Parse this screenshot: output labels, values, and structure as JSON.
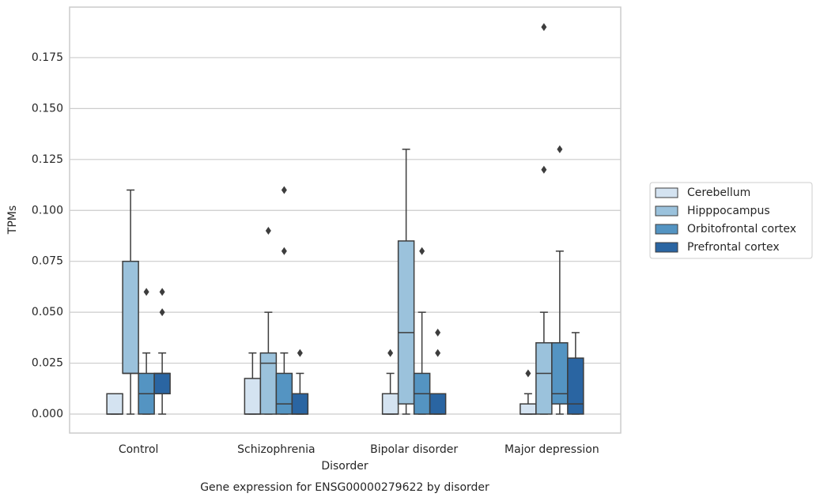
{
  "chart_data": {
    "type": "box",
    "title": "Gene expression for ENSG00000279622 by disorder",
    "x_label": "Disorder",
    "y_label": "TPMs",
    "categories": [
      "Control",
      "Schizophrenia",
      "Bipolar disorder",
      "Major depression"
    ],
    "ylim": [
      -0.0093,
      0.1998
    ],
    "yticks": [
      {
        "value": 0,
        "label": "0.000"
      },
      {
        "value": 0.025,
        "label": "0.025"
      },
      {
        "value": 0.05,
        "label": "0.050"
      },
      {
        "value": 0.075,
        "label": "0.075"
      },
      {
        "value": 0.1,
        "label": "0.100"
      },
      {
        "value": 0.125,
        "label": "0.125"
      },
      {
        "value": 0.15,
        "label": "0.150"
      },
      {
        "value": 0.175,
        "label": "0.175"
      }
    ],
    "grid": true,
    "legend": "right",
    "series": [
      {
        "name": "Cerebellum",
        "color": "#d4e3f1",
        "values": [
          {
            "whislo": 0,
            "q1": 0,
            "med": 0,
            "q3": 0.01,
            "whishi": 0.01,
            "fliers": []
          },
          {
            "whislo": 0,
            "q1": 0,
            "med": 0,
            "q3": 0.0175,
            "whishi": 0.03,
            "fliers": []
          },
          {
            "whislo": 0,
            "q1": 0,
            "med": 0,
            "q3": 0.01,
            "whishi": 0.02,
            "fliers": [
              0.03
            ]
          },
          {
            "whislo": 0,
            "q1": 0,
            "med": 0,
            "q3": 0.005,
            "whishi": 0.01,
            "fliers": [
              0.02
            ]
          }
        ]
      },
      {
        "name": "Hipppocampus",
        "color": "#9bc2dc",
        "values": [
          {
            "whislo": 0,
            "q1": 0.02,
            "med": 0.02,
            "q3": 0.075,
            "whishi": 0.11,
            "fliers": []
          },
          {
            "whislo": 0,
            "q1": 0,
            "med": 0.025,
            "q3": 0.03,
            "whishi": 0.05,
            "fliers": [
              0.09
            ]
          },
          {
            "whislo": 0,
            "q1": 0.005,
            "med": 0.04,
            "q3": 0.085,
            "whishi": 0.13,
            "fliers": []
          },
          {
            "whislo": 0,
            "q1": 0,
            "med": 0.02,
            "q3": 0.035,
            "whishi": 0.05,
            "fliers": [
              0.12,
              0.19
            ]
          }
        ]
      },
      {
        "name": "Orbitofrontal cortex",
        "color": "#5494c2",
        "values": [
          {
            "whislo": 0,
            "q1": 0,
            "med": 0.01,
            "q3": 0.02,
            "whishi": 0.03,
            "fliers": [
              0.06
            ]
          },
          {
            "whislo": 0,
            "q1": 0,
            "med": 0.005,
            "q3": 0.02,
            "whishi": 0.03,
            "fliers": [
              0.08,
              0.11
            ]
          },
          {
            "whislo": 0,
            "q1": 0,
            "med": 0.01,
            "q3": 0.02,
            "whishi": 0.05,
            "fliers": [
              0.08
            ]
          },
          {
            "whislo": 0,
            "q1": 0.005,
            "med": 0.01,
            "q3": 0.035,
            "whishi": 0.08,
            "fliers": [
              0.13
            ]
          }
        ]
      },
      {
        "name": "Prefrontal cortex",
        "color": "#2a65a2",
        "values": [
          {
            "whislo": 0,
            "q1": 0.01,
            "med": 0.02,
            "q3": 0.02,
            "whishi": 0.03,
            "fliers": [
              0.05,
              0.06
            ]
          },
          {
            "whislo": 0,
            "q1": 0,
            "med": 0,
            "q3": 0.01,
            "whishi": 0.02,
            "fliers": [
              0.03
            ]
          },
          {
            "whislo": 0,
            "q1": 0,
            "med": 0,
            "q3": 0.01,
            "whishi": 0.01,
            "fliers": [
              0.03,
              0.04
            ]
          },
          {
            "whislo": 0,
            "q1": 0,
            "med": 0.005,
            "q3": 0.0275,
            "whishi": 0.04,
            "fliers": []
          }
        ]
      }
    ]
  }
}
